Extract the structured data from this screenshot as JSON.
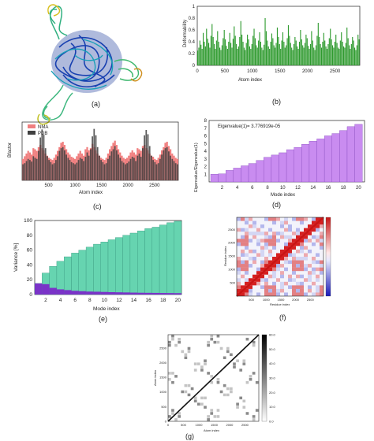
{
  "colors": {
    "deform_green": "#2e9a2e",
    "nma_red": "#f07f7f",
    "pdb_dark": "#404040",
    "eigen_purple": "#c98cf0",
    "eigen_edge": "#8a4fc0",
    "var_green": "#66d4b0",
    "var_purple": "#7a33c8",
    "map_red": "#d52020",
    "map_blue": "#2222c8",
    "gray_dark": "#333333"
  },
  "panel_labels": [
    "(a)",
    "(b)",
    "(c)",
    "(d)",
    "(e)",
    "(f)",
    "(g)"
  ],
  "chart_data": [
    {
      "id": "b",
      "type": "bar",
      "ylabel": "Deformability",
      "xlabel": "Atom index",
      "xlim": [
        0,
        2950
      ],
      "ylim": [
        0,
        1
      ],
      "xticks": [
        "0",
        "500",
        "1000",
        "1500",
        "2000",
        "2500"
      ],
      "xtick_values": [
        0,
        500,
        1000,
        1500,
        2000,
        2500
      ],
      "yticks": [
        "0",
        "0.2",
        "0.4",
        "0.6",
        "0.8",
        "1"
      ],
      "ytick_values": [
        0,
        0.2,
        0.4,
        0.6,
        0.8,
        1
      ],
      "series": [
        {
          "values": [
            0.25,
            0.3,
            0.42,
            0.35,
            0.28,
            0.55,
            0.4,
            0.32,
            0.62,
            0.45,
            0.38,
            0.3,
            0.5,
            0.7,
            0.48,
            0.36,
            0.28,
            0.42,
            0.58,
            0.4,
            0.3,
            0.26,
            0.34,
            0.46,
            0.6,
            0.44,
            0.33,
            0.28,
            0.4,
            0.55,
            0.38,
            0.3,
            0.45,
            0.66,
            0.5,
            0.36,
            0.28,
            0.32,
            0.48,
            0.75,
            0.52,
            0.4,
            0.3,
            0.26,
            0.38,
            0.52,
            0.44,
            0.32,
            0.28,
            0.36,
            0.5,
            0.62,
            0.46,
            0.34,
            0.3,
            0.42,
            0.56,
            0.4,
            0.3,
            0.26,
            0.35,
            0.8,
            0.58,
            0.42,
            0.32,
            0.28,
            0.4,
            0.54,
            0.46,
            0.34,
            0.3,
            0.38,
            0.64,
            0.48,
            0.36,
            0.28,
            0.42,
            0.56,
            0.4,
            0.3,
            0.34,
            0.46,
            0.68,
            0.5,
            0.38,
            0.3,
            0.26,
            0.36,
            0.48,
            0.42,
            0.32,
            0.28,
            0.4,
            0.6,
            0.44,
            0.34,
            0.3,
            0.38,
            0.52,
            0.46,
            0.33,
            0.28,
            0.36,
            0.58,
            0.42,
            0.3,
            0.26,
            0.34,
            0.5,
            0.72,
            0.48,
            0.36,
            0.3,
            0.4,
            0.55,
            0.42,
            0.32,
            0.28,
            0.36,
            0.46,
            0.62,
            0.44,
            0.34,
            0.3,
            0.4,
            0.52,
            0.38,
            0.3,
            0.28,
            0.42,
            0.56,
            0.4,
            0.32,
            0.3,
            0.38,
            0.64,
            0.46,
            0.34,
            0.28,
            0.36,
            0.48,
            0.42,
            0.3,
            0.26,
            0.34,
            0.52,
            0.44
          ]
        }
      ]
    },
    {
      "id": "c",
      "type": "bar",
      "ylabel": "Bfactor",
      "xlabel": "Atom index",
      "xlim": [
        0,
        2950
      ],
      "ylim": [
        0,
        1
      ],
      "xticks": [
        "500",
        "1000",
        "1500",
        "2000",
        "2500"
      ],
      "xtick_values": [
        500,
        1000,
        1500,
        2000,
        2500
      ],
      "series": [
        {
          "name": "NMA",
          "values": [
            0.4,
            0.45,
            0.5,
            0.55,
            0.52,
            0.48,
            0.6,
            0.58,
            0.55,
            0.62,
            0.66,
            0.6,
            0.56,
            0.5,
            0.46,
            0.42,
            0.4,
            0.38,
            0.42,
            0.48,
            0.55,
            0.62,
            0.7,
            0.72,
            0.66,
            0.58,
            0.52,
            0.48,
            0.44,
            0.42,
            0.4,
            0.45,
            0.5,
            0.55,
            0.5,
            0.46,
            0.58,
            0.62,
            0.56,
            0.6,
            0.68,
            0.62,
            0.56,
            0.5,
            0.46,
            0.42,
            0.4,
            0.38,
            0.42,
            0.5,
            0.58,
            0.64,
            0.7,
            0.74,
            0.66,
            0.58,
            0.52,
            0.46,
            0.42,
            0.4,
            0.42,
            0.46,
            0.52,
            0.56,
            0.52,
            0.48,
            0.6,
            0.58,
            0.55,
            0.64,
            0.66,
            0.6,
            0.56,
            0.5,
            0.46,
            0.44,
            0.4,
            0.38,
            0.42,
            0.48,
            0.56,
            0.62,
            0.7,
            0.72,
            0.64,
            0.58,
            0.5,
            0.46,
            0.42,
            0.4
          ]
        },
        {
          "name": "PDB",
          "values": [
            0.3,
            0.32,
            0.36,
            0.4,
            0.38,
            0.35,
            0.45,
            0.42,
            0.4,
            0.55,
            0.8,
            0.95,
            0.85,
            0.6,
            0.45,
            0.38,
            0.34,
            0.3,
            0.32,
            0.38,
            0.45,
            0.55,
            0.6,
            0.62,
            0.56,
            0.48,
            0.42,
            0.38,
            0.34,
            0.32,
            0.3,
            0.33,
            0.38,
            0.42,
            0.4,
            0.36,
            0.44,
            0.52,
            0.46,
            0.58,
            0.82,
            0.96,
            0.84,
            0.62,
            0.46,
            0.38,
            0.34,
            0.3,
            0.32,
            0.4,
            0.46,
            0.54,
            0.58,
            0.64,
            0.56,
            0.48,
            0.42,
            0.36,
            0.33,
            0.3,
            0.32,
            0.35,
            0.4,
            0.44,
            0.42,
            0.36,
            0.46,
            0.5,
            0.44,
            0.6,
            0.84,
            0.94,
            0.86,
            0.64,
            0.46,
            0.38,
            0.34,
            0.3,
            0.32,
            0.4,
            0.48,
            0.56,
            0.6,
            0.62,
            0.54,
            0.46,
            0.4,
            0.36,
            0.32,
            0.3
          ]
        }
      ],
      "legend": "top-left"
    },
    {
      "id": "d",
      "type": "bar",
      "title": "Eigenvalue(1)= 3.776919e-05",
      "ylabel": "Eigenvalue/Eigenvalue(1)",
      "xlabel": "Mode index",
      "categories": [
        1,
        2,
        3,
        4,
        5,
        6,
        7,
        8,
        9,
        10,
        11,
        12,
        13,
        14,
        15,
        16,
        17,
        18,
        19,
        20
      ],
      "values": [
        1.0,
        1.05,
        1.5,
        1.8,
        2.1,
        2.4,
        2.8,
        3.2,
        3.5,
        3.8,
        4.2,
        4.5,
        4.9,
        5.3,
        5.6,
        6.0,
        6.3,
        6.7,
        7.2,
        7.5
      ],
      "ylim": [
        0,
        8
      ],
      "xticks": [
        "2",
        "4",
        "6",
        "8",
        "10",
        "12",
        "14",
        "16",
        "18",
        "20"
      ],
      "xtick_values": [
        2,
        4,
        6,
        8,
        10,
        12,
        14,
        16,
        18,
        20
      ],
      "yticks": [
        "1",
        "2",
        "3",
        "4",
        "5",
        "6",
        "7",
        "8"
      ],
      "ytick_values": [
        1,
        2,
        3,
        4,
        5,
        6,
        7,
        8
      ]
    },
    {
      "id": "e",
      "type": "bar",
      "ylabel": "Variance [%]",
      "xlabel": "Mode index",
      "categories": [
        1,
        2,
        3,
        4,
        5,
        6,
        7,
        8,
        9,
        10,
        11,
        12,
        13,
        14,
        15,
        16,
        17,
        18,
        19,
        20
      ],
      "series": [
        {
          "values": [
            15,
            29,
            38,
            45,
            51,
            56,
            60,
            64,
            68,
            71,
            74,
            77,
            80,
            83,
            86,
            89,
            91,
            94,
            97,
            99
          ]
        },
        {
          "values": [
            15,
            14,
            9,
            7,
            6,
            5,
            4.5,
            4,
            3.8,
            3.5,
            3.2,
            3.0,
            2.8,
            2.6,
            2.4,
            2.3,
            2.2,
            2.1,
            2.0,
            1.9
          ]
        }
      ],
      "ylim": [
        0,
        100
      ],
      "xticks": [
        "2",
        "4",
        "6",
        "8",
        "10",
        "12",
        "14",
        "16",
        "18",
        "20"
      ],
      "xtick_values": [
        2,
        4,
        6,
        8,
        10,
        12,
        14,
        16,
        18,
        20
      ],
      "yticks": [
        "0",
        "20",
        "40",
        "60",
        "80",
        "100"
      ],
      "ytick_values": [
        0,
        20,
        40,
        60,
        80,
        100
      ]
    },
    {
      "id": "f",
      "type": "heatmap",
      "ylabel": "Residue index",
      "xlabel": "Residue index",
      "xticks": [
        "500",
        "1000",
        "1500",
        "2000",
        "2500"
      ],
      "yticks": [
        "500",
        "1000",
        "1500",
        "2000",
        "2500"
      ],
      "tick_values": [
        500,
        1000,
        1500,
        2000,
        2500
      ],
      "range": [
        0,
        2950
      ]
    },
    {
      "id": "g",
      "type": "heatmap",
      "ylabel": "Atom index",
      "xlabel": "Atom index",
      "xticks": [
        "0",
        "500",
        "1000",
        "1500",
        "2000",
        "2500"
      ],
      "yticks": [
        "0",
        "500",
        "1000",
        "1500",
        "2000",
        "2500"
      ],
      "tick_values": [
        0,
        500,
        1000,
        1500,
        2000,
        2500
      ],
      "range": [
        0,
        2950
      ],
      "colorbar_ticks": [
        "0.0",
        "10.0",
        "20.0",
        "30.0",
        "40.0",
        "50.0",
        "60.0"
      ],
      "colorbar_values": [
        0,
        10,
        20,
        30,
        40,
        50,
        60
      ]
    }
  ]
}
